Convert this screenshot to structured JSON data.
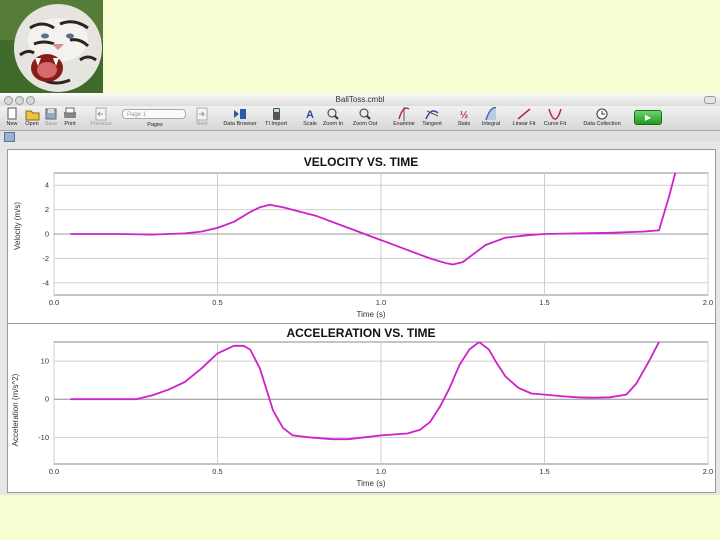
{
  "window": {
    "title": "BallToss.cmbl"
  },
  "toolbar": {
    "buttons": [
      {
        "label": "New",
        "icon": "new-document-icon"
      },
      {
        "label": "Open",
        "icon": "folder-open-icon"
      },
      {
        "label": "Save",
        "icon": "save-disk-icon"
      },
      {
        "label": "Print",
        "icon": "printer-icon"
      },
      {
        "label": "Previous",
        "icon": "previous-page-icon"
      },
      {
        "label": "Pages",
        "icon": "pages-icon"
      },
      {
        "label": "Next",
        "icon": "next-page-icon"
      },
      {
        "label": "Data Browser",
        "icon": "data-browser-icon"
      },
      {
        "label": "TI Import",
        "icon": "calculator-import-icon"
      },
      {
        "label": "Scale",
        "icon": "autoscale-icon"
      },
      {
        "label": "Zoom In",
        "icon": "zoom-in-icon"
      },
      {
        "label": "Zoom Out",
        "icon": "zoom-out-icon"
      },
      {
        "label": "Examine",
        "icon": "examine-icon"
      },
      {
        "label": "Tangent",
        "icon": "tangent-icon"
      },
      {
        "label": "Stats",
        "icon": "stats-icon"
      },
      {
        "label": "Integral",
        "icon": "integral-icon"
      },
      {
        "label": "Linear Fit",
        "icon": "linear-fit-icon"
      },
      {
        "label": "Curve Fit",
        "icon": "curve-fit-icon"
      },
      {
        "label": "Data Collection",
        "icon": "data-collection-icon"
      }
    ],
    "page_select": "Page 1",
    "collect_glyph": "▶"
  },
  "accent_color": "#cc22cc",
  "chart_data": [
    {
      "type": "line",
      "title": "VELOCITY VS. TIME",
      "xlabel": "Time (s)",
      "ylabel": "Velocity (m/s)",
      "xlim": [
        0.0,
        2.0
      ],
      "ylim": [
        -5,
        5
      ],
      "xticks": [
        "0.0",
        "0.5",
        "1.0",
        "1.5",
        "2.0"
      ],
      "yticks": [
        "4",
        "2",
        "0",
        "-2",
        "-4"
      ],
      "grid": true,
      "series": [
        {
          "x": [
            0.05,
            0.1,
            0.2,
            0.3,
            0.35,
            0.4,
            0.45,
            0.5,
            0.55,
            0.6,
            0.63,
            0.66,
            0.7,
            0.8,
            0.9,
            1.0,
            1.1,
            1.15,
            1.2,
            1.22,
            1.25,
            1.28,
            1.32,
            1.38,
            1.45,
            1.5,
            1.6,
            1.7,
            1.8,
            1.85,
            1.88,
            1.9
          ],
          "y": [
            0,
            0,
            0,
            -0.05,
            0,
            0.05,
            0.2,
            0.5,
            1.0,
            1.8,
            2.2,
            2.4,
            2.2,
            1.5,
            0.5,
            -0.5,
            -1.5,
            -2.0,
            -2.4,
            -2.5,
            -2.3,
            -1.7,
            -0.9,
            -0.3,
            -0.1,
            0,
            0.05,
            0.1,
            0.2,
            0.3,
            3.0,
            5.0
          ]
        }
      ]
    },
    {
      "type": "line",
      "title": "ACCELERATION VS. TIME",
      "xlabel": "Time (s)",
      "ylabel": "Acceleration (m/s^2)",
      "xlim": [
        0.0,
        2.0
      ],
      "ylim": [
        -17,
        15
      ],
      "xticks": [
        "0.0",
        "0.5",
        "1.0",
        "1.5",
        "2.0"
      ],
      "yticks": [
        "10",
        "0",
        "-10"
      ],
      "grid": true,
      "series": [
        {
          "x": [
            0.05,
            0.1,
            0.2,
            0.25,
            0.3,
            0.35,
            0.4,
            0.45,
            0.5,
            0.55,
            0.58,
            0.6,
            0.63,
            0.67,
            0.7,
            0.73,
            0.78,
            0.85,
            0.9,
            0.95,
            1.0,
            1.08,
            1.12,
            1.15,
            1.18,
            1.21,
            1.24,
            1.27,
            1.3,
            1.33,
            1.35,
            1.38,
            1.42,
            1.46,
            1.5,
            1.55,
            1.6,
            1.65,
            1.7,
            1.75,
            1.78,
            1.82,
            1.85
          ],
          "y": [
            0,
            0,
            0,
            0,
            1,
            2.5,
            4.5,
            8,
            12,
            14,
            14,
            13,
            8,
            -3,
            -7.5,
            -9.5,
            -10,
            -10.5,
            -10.5,
            -10,
            -9.5,
            -9,
            -8,
            -6,
            -2,
            3,
            9,
            13,
            15,
            13,
            10,
            6,
            3,
            1.5,
            1.2,
            0.8,
            0.5,
            0.4,
            0.5,
            1.2,
            4,
            10,
            15
          ]
        }
      ]
    }
  ]
}
